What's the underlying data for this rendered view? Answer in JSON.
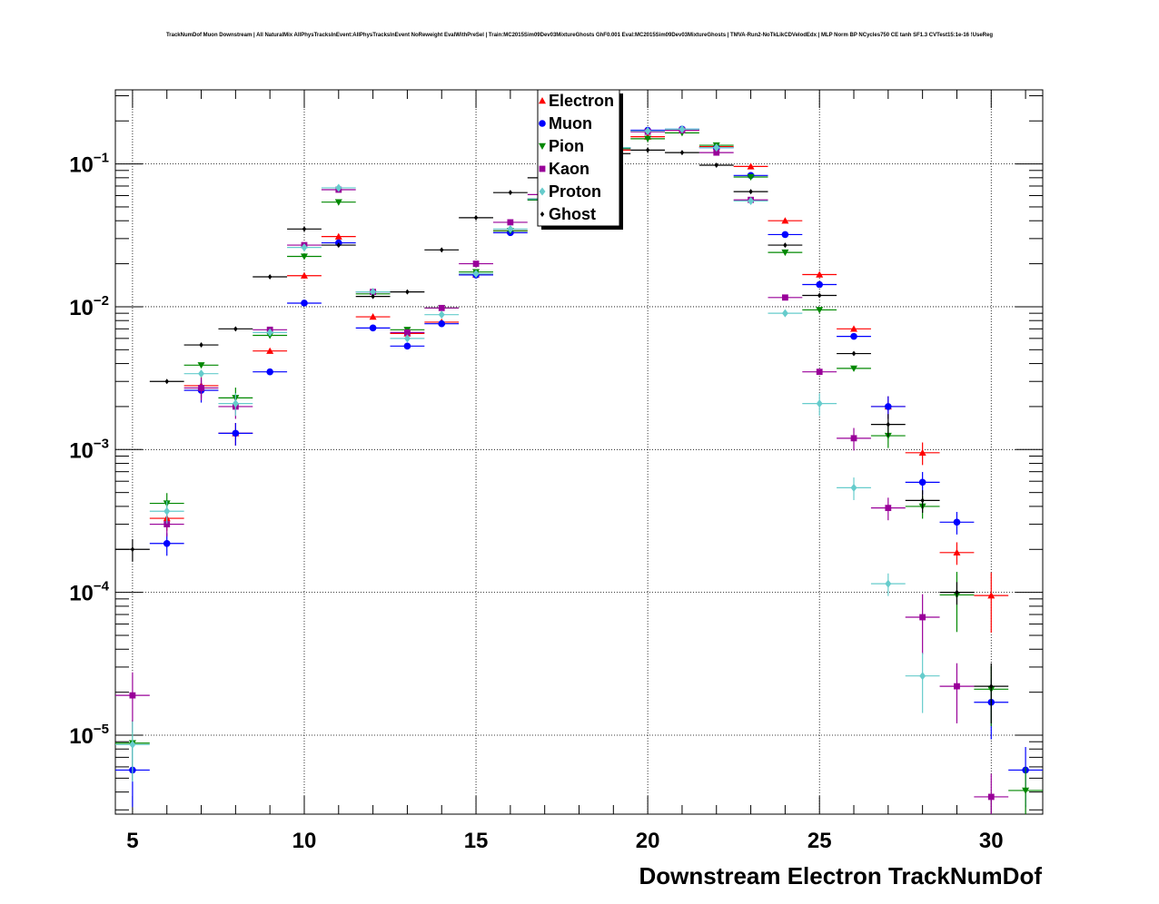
{
  "chart_data": {
    "type": "scatter",
    "title": "TrackNumDof Muon Downstream | All NaturalMix AllPhysTracksInEvent:AllPhysTracksInEvent NoReweight EvalWithPreSel | Train:MC2015Sim09Dev03MixtureGhosts GhF0.001 Eval:MC2015Sim09Dev03MixtureGhosts | TMVA-Run2-NoTkLikCDVelodEdx | MLP Norm BP NCycles750 CE tanh SF1.3 CVTest15:1e-16 !UseReg",
    "xlabel": "Downstream Electron TrackNumDof",
    "ylabel": "",
    "xlim": [
      4.5,
      31.5
    ],
    "ylim": [
      2.8e-06,
      0.33
    ],
    "yscale": "log",
    "grid": true,
    "legend_position": "top-center",
    "x_ticks": [
      5,
      10,
      15,
      20,
      25,
      30
    ],
    "y_ticks": [
      {
        "value": 1e-05,
        "mantissa": "10",
        "exponent": "−5"
      },
      {
        "value": 0.0001,
        "mantissa": "10",
        "exponent": "−4"
      },
      {
        "value": 0.001,
        "mantissa": "10",
        "exponent": "−3"
      },
      {
        "value": 0.01,
        "mantissa": "10",
        "exponent": "−2"
      },
      {
        "value": 0.1,
        "mantissa": "10",
        "exponent": "−1"
      }
    ],
    "series": [
      {
        "name": "Electron",
        "color": "#ff0000",
        "marker": "triangle-up",
        "x": [
          6,
          7,
          8,
          9,
          10,
          11,
          12,
          13,
          14,
          15,
          16,
          17,
          18,
          19,
          20,
          21,
          22,
          23,
          24,
          25,
          26,
          27,
          28,
          29,
          30
        ],
        "y": [
          0.00033,
          0.0028,
          0.0013,
          0.0049,
          0.0165,
          0.031,
          0.0085,
          0.0065,
          0.0078,
          0.0168,
          0.034,
          0.057,
          0.085,
          0.125,
          0.155,
          0.172,
          0.132,
          0.096,
          0.04,
          0.0168,
          0.007,
          0.002,
          0.00095,
          0.00019,
          9.5e-05
        ]
      },
      {
        "name": "Muon",
        "color": "#0000ff",
        "marker": "circle",
        "x": [
          5,
          6,
          7,
          8,
          9,
          10,
          11,
          12,
          13,
          14,
          15,
          16,
          17,
          18,
          19,
          20,
          21,
          22,
          23,
          24,
          25,
          26,
          27,
          28,
          29,
          30,
          31
        ],
        "y": [
          5.7e-06,
          0.00022,
          0.0026,
          0.0013,
          0.0035,
          0.0106,
          0.028,
          0.0071,
          0.0053,
          0.0076,
          0.0167,
          0.033,
          0.056,
          0.086,
          0.128,
          0.172,
          0.175,
          0.13,
          0.083,
          0.032,
          0.0143,
          0.0062,
          0.002,
          0.00059,
          0.00031,
          1.7e-05,
          5.7e-06
        ]
      },
      {
        "name": "Pion",
        "color": "#008800",
        "marker": "triangle-down",
        "x": [
          5,
          6,
          7,
          8,
          9,
          10,
          11,
          12,
          13,
          14,
          15,
          16,
          17,
          18,
          19,
          20,
          21,
          22,
          23,
          24,
          25,
          26,
          27,
          28,
          29,
          30,
          31
        ],
        "y": [
          8.8e-06,
          0.00042,
          0.0039,
          0.0023,
          0.0063,
          0.0225,
          0.054,
          0.0123,
          0.0069,
          0.0098,
          0.0175,
          0.034,
          0.056,
          0.088,
          0.128,
          0.15,
          0.165,
          0.135,
          0.081,
          0.024,
          0.0095,
          0.0037,
          0.00125,
          0.0004,
          9.6e-05,
          2.1e-05,
          4.1e-06
        ]
      },
      {
        "name": "Kaon",
        "color": "#990099",
        "marker": "square",
        "x": [
          5,
          6,
          7,
          8,
          9,
          10,
          11,
          12,
          13,
          14,
          15,
          16,
          17,
          18,
          19,
          20,
          21,
          22,
          23,
          24,
          25,
          26,
          27,
          28,
          29,
          30
        ],
        "y": [
          1.9e-05,
          0.0003,
          0.0027,
          0.002,
          0.0069,
          0.027,
          0.066,
          0.0127,
          0.0066,
          0.0098,
          0.02,
          0.039,
          0.061,
          0.088,
          0.13,
          0.168,
          0.172,
          0.12,
          0.056,
          0.0116,
          0.0035,
          0.0012,
          0.00039,
          6.7e-05,
          2.2e-05,
          3.7e-06
        ]
      },
      {
        "name": "Proton",
        "color": "#66cccc",
        "marker": "diamond",
        "x": [
          5,
          6,
          7,
          8,
          9,
          10,
          11,
          12,
          13,
          14,
          15,
          16,
          17,
          18,
          19,
          20,
          21,
          22,
          23,
          24,
          25,
          26,
          27,
          28
        ],
        "y": [
          8.6e-06,
          0.00037,
          0.0034,
          0.0021,
          0.0066,
          0.026,
          0.068,
          0.0127,
          0.006,
          0.0088,
          0.017,
          0.035,
          0.057,
          0.085,
          0.13,
          0.17,
          0.175,
          0.13,
          0.055,
          0.009,
          0.0021,
          0.00054,
          0.000115,
          2.6e-05
        ]
      },
      {
        "name": "Ghost",
        "color": "#000000",
        "marker": "small-diamond",
        "x": [
          5,
          6,
          7,
          8,
          9,
          10,
          11,
          12,
          13,
          14,
          15,
          16,
          17,
          18,
          19,
          20,
          21,
          22,
          23,
          24,
          25,
          26,
          27,
          28,
          29,
          30
        ],
        "y": [
          0.0002,
          0.003,
          0.0054,
          0.007,
          0.0162,
          0.035,
          0.027,
          0.0118,
          0.0127,
          0.025,
          0.042,
          0.063,
          0.08,
          0.105,
          0.118,
          0.125,
          0.12,
          0.098,
          0.064,
          0.027,
          0.012,
          0.0047,
          0.0015,
          0.00044,
          0.0001,
          2.2e-05
        ]
      }
    ]
  }
}
